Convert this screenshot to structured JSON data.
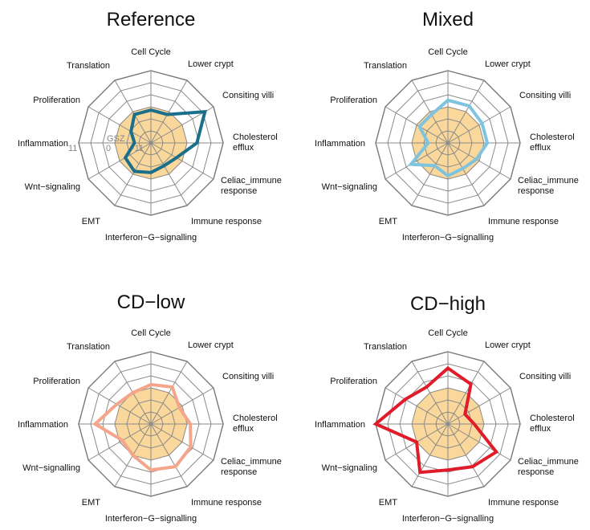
{
  "chart_data": [
    {
      "type": "radar",
      "title": "Reference",
      "categories": [
        "Cell Cycle",
        "Lower crypt",
        "Consiting villi",
        "Cholesterol efflux",
        "Celiac_immune response",
        "Immune response",
        "Interferon−G−signalling",
        "EMT",
        "Wnt−signaling",
        "Inflammation",
        "Proliferation",
        "Translation"
      ],
      "scale_labels": {
        "name": "GSZ",
        "min": "-11",
        "mid": "0",
        "max": "11"
      },
      "rlim": [
        -11,
        11
      ],
      "reference_level": 0,
      "series": [
        {
          "name": "Reference",
          "color": "#1b6f8a",
          "values": [
            -1,
            -1,
            8,
            3,
            -2,
            -3,
            -2,
            -1,
            -2,
            -6,
            -4,
            -1
          ]
        }
      ]
    },
    {
      "type": "radar",
      "title": "Mixed",
      "categories": [
        "Cell Cycle",
        "Lower crypt",
        "Consiting villi",
        "Cholesterol efflux",
        "Celiac_immune response",
        "Immune response",
        "Interferon−G−signalling",
        "EMT",
        "Wnt−signaling",
        "Inflammation",
        "Proliferation",
        "Translation"
      ],
      "rlim": [
        -11,
        11
      ],
      "reference_level": 0,
      "series": [
        {
          "name": "Mixed",
          "color": "#7ec4e0",
          "values": [
            2,
            2,
            1,
            1,
            -1,
            -2,
            -1,
            -3,
            2,
            -5,
            -1,
            -1
          ]
        }
      ]
    },
    {
      "type": "radar",
      "title": "CD−low",
      "categories": [
        "Cell Cycle",
        "Lower crypt",
        "Consiting villi",
        "Cholesterol efflux",
        "Celiac_immune response",
        "Immune response",
        "Interferon−G−signalling",
        "EMT",
        "Wnt−signalling",
        "Inflammation",
        "Proliferation",
        "Translation"
      ],
      "rlim": [
        -11,
        11
      ],
      "reference_level": 0,
      "series": [
        {
          "name": "CD−low",
          "color": "#f4a58a",
          "values": [
            1,
            2,
            -1,
            1,
            3,
            4,
            3,
            0,
            -1,
            6,
            1,
            0
          ]
        }
      ]
    },
    {
      "type": "radar",
      "title": "CD−high",
      "categories": [
        "Cell Cycle",
        "Lower crypt",
        "Consiting villi",
        "Cholesterol efflux",
        "Celiac_immune response",
        "Immune response",
        "Interferon−G−signalling",
        "EMT",
        "Wnt−signaling",
        "Inflammation",
        "Proliferation",
        "Translation"
      ],
      "rlim": [
        -11,
        11
      ],
      "reference_level": 0,
      "series": [
        {
          "name": "CD−high",
          "color": "#e01b2a",
          "values": [
            6,
            3,
            -5,
            -3,
            6,
            4,
            3,
            6,
            0,
            11,
            4,
            2
          ]
        }
      ]
    }
  ]
}
